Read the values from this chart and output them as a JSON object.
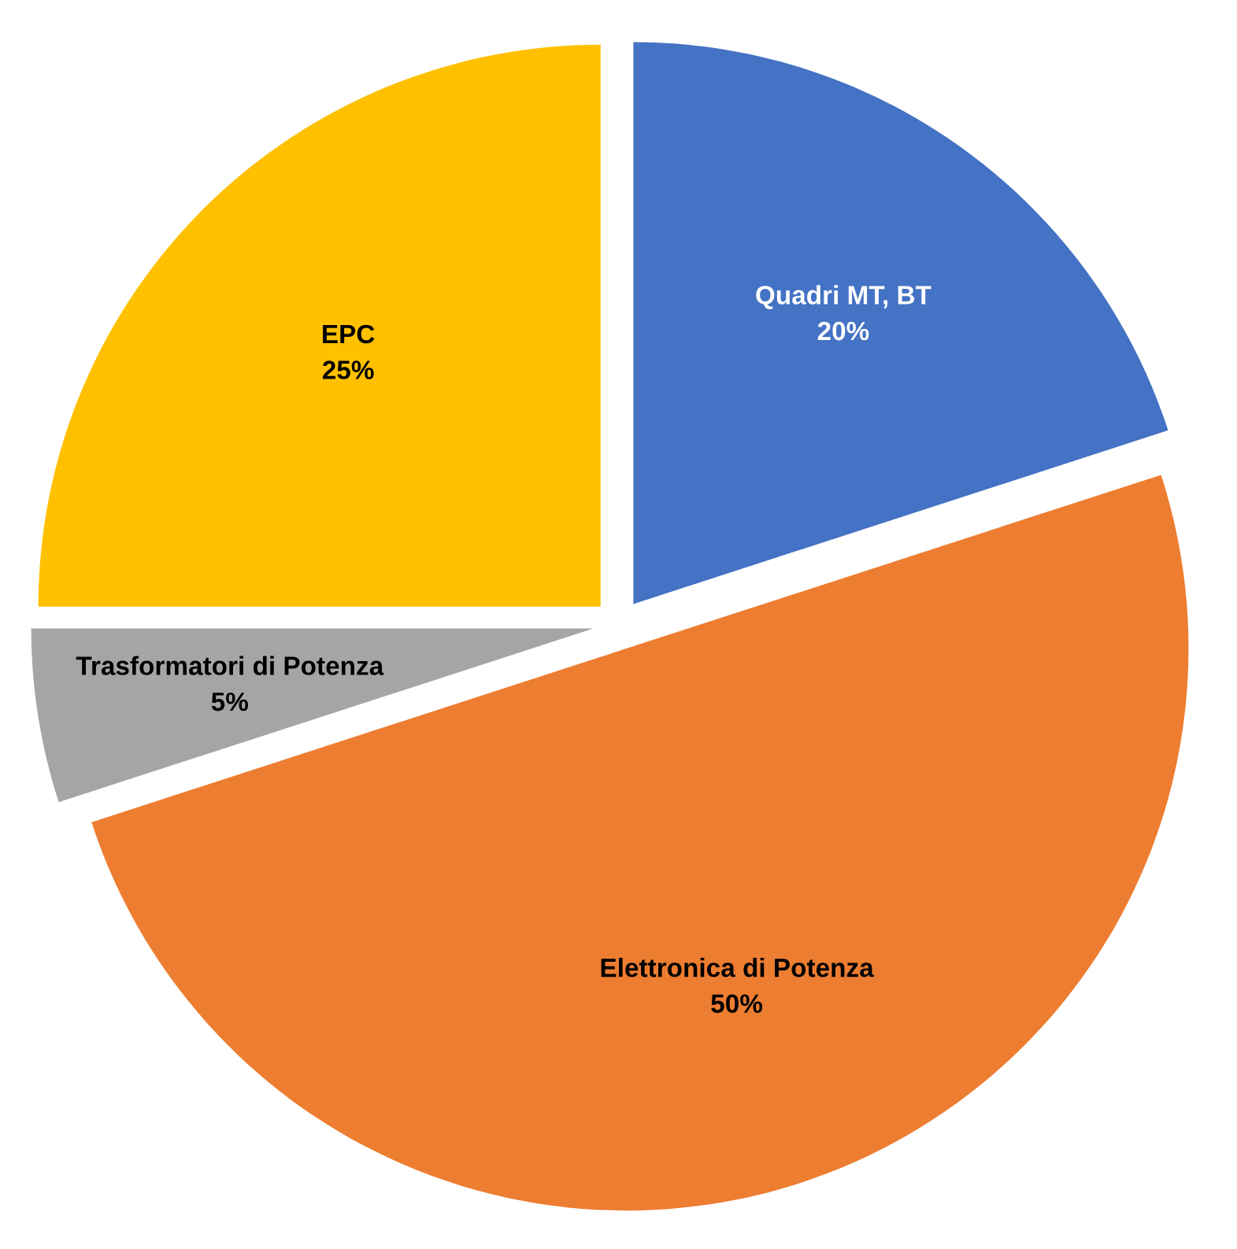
{
  "chart_data": {
    "type": "pie",
    "categories": [
      "Quadri MT, BT",
      "Elettronica di Potenza",
      "Trasformatori di Potenza",
      "EPC"
    ],
    "values": [
      20,
      50,
      5,
      25
    ],
    "colors": [
      "#4472c4",
      "#ed7d31",
      "#a5a5a5",
      "#ffc000"
    ],
    "value_labels": [
      "20%",
      "50%",
      "5%",
      "25%"
    ]
  }
}
